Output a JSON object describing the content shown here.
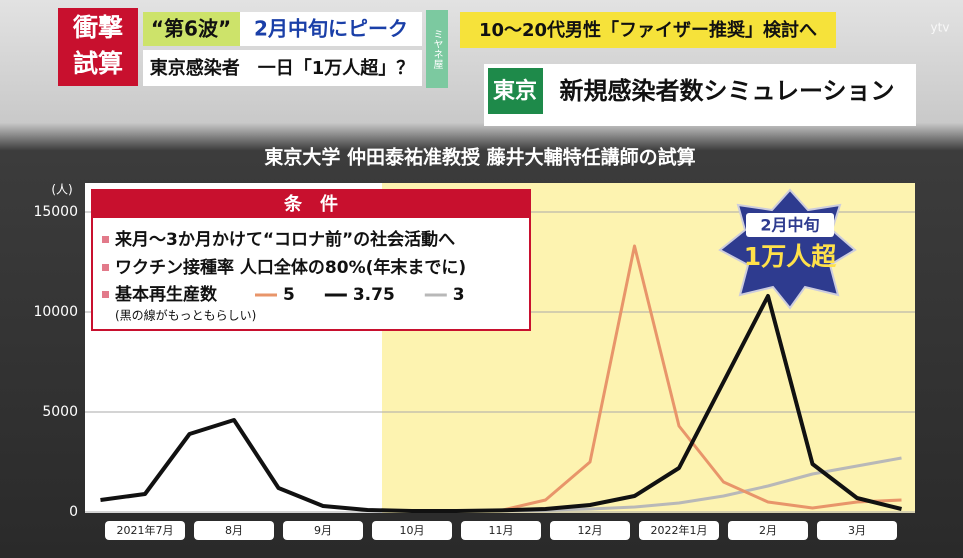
{
  "header": {
    "shock": [
      "衝撃",
      "試算"
    ],
    "wave": "“第6波”",
    "peak": "2月中旬にピーク",
    "tokyo_case": "東京感染者　一日「1万人超」？",
    "logo": "ミヤネ屋",
    "news": "10～20代男性「ファイザー推奨」検討へ",
    "place": "東京",
    "topic": "新規感染者数シミュレーション",
    "station": "ytv"
  },
  "chart_data": {
    "type": "line",
    "title": "東京大学 仲田泰祐准教授 藤井大輔特任講師の試算",
    "y_unit": "(人)",
    "categories": [
      null,
      "2021年7月",
      null,
      "8月",
      null,
      "9月",
      null,
      "10月",
      null,
      "11月",
      null,
      "12月",
      null,
      "2022年1月",
      null,
      "2月",
      null,
      "3月",
      null
    ],
    "series": [
      {
        "name": "5",
        "color": "#e8956a",
        "values": [
          600,
          900,
          3900,
          4600,
          1200,
          300,
          100,
          50,
          50,
          80,
          600,
          2500,
          13300,
          4300,
          1500,
          500,
          200,
          500,
          600
        ]
      },
      {
        "name": "3.75",
        "color": "#111111",
        "values": [
          600,
          900,
          3900,
          4600,
          1200,
          300,
          100,
          50,
          50,
          80,
          150,
          350,
          800,
          2200,
          6500,
          10800,
          2400,
          700,
          150
        ]
      },
      {
        "name": "3",
        "color": "#b8b8b8",
        "values": [
          600,
          900,
          3900,
          4600,
          1200,
          300,
          100,
          50,
          50,
          80,
          100,
          150,
          250,
          450,
          800,
          1300,
          1900,
          2300,
          2700
        ]
      }
    ],
    "ylim": [
      0,
      15000
    ],
    "yticks": [
      0,
      5000,
      10000,
      15000
    ],
    "grid": true,
    "conditions": {
      "title": "条　件",
      "items": [
        "来月～3か月かけて“コロナ前”の社会活動へ",
        "ワクチン接種率 人口全体の80%(年末までに)",
        "基本再生産数"
      ],
      "note": "(黒の線がもっともらしい)"
    },
    "badge": [
      "2月中旬",
      "1万人超"
    ]
  }
}
